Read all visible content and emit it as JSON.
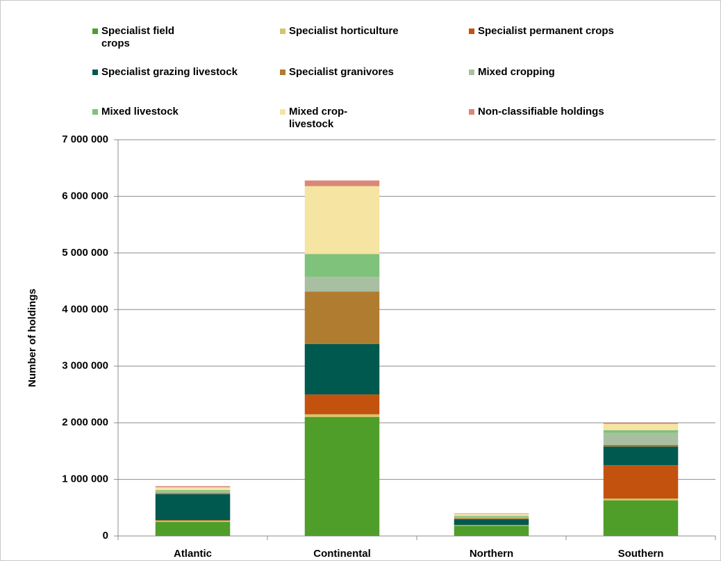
{
  "chart_data": {
    "type": "stacked_bar",
    "y_label": "Number of holdings",
    "categories": [
      "Atlantic",
      "Continental",
      "Northern",
      "Southern"
    ],
    "series": [
      {
        "name": "Specialist field crops",
        "color": "#4f9e2a",
        "values": [
          250000,
          2100000,
          180000,
          630000
        ]
      },
      {
        "name": "Specialist horticulture",
        "color": "#d4c46a",
        "values": [
          20000,
          50000,
          10000,
          30000
        ]
      },
      {
        "name": "Specialist permanent crops",
        "color": "#c4520f",
        "values": [
          10000,
          350000,
          5000,
          590000
        ]
      },
      {
        "name": "Specialist grazing livestock",
        "color": "#00594f",
        "values": [
          460000,
          890000,
          100000,
          330000
        ]
      },
      {
        "name": "Specialist granivores",
        "color": "#b07c30",
        "values": [
          20000,
          930000,
          20000,
          30000
        ]
      },
      {
        "name": "Mixed cropping",
        "color": "#a9bfa2",
        "values": [
          30000,
          260000,
          20000,
          210000
        ]
      },
      {
        "name": "Mixed livestock",
        "color": "#7fc27c",
        "values": [
          20000,
          400000,
          20000,
          50000
        ]
      },
      {
        "name": "Mixed crop-livestock",
        "color": "#f6e4a2",
        "values": [
          50000,
          1200000,
          35000,
          110000
        ]
      },
      {
        "name": "Non-classifiable holdings",
        "color": "#d98878",
        "values": [
          20000,
          100000,
          10000,
          20000
        ]
      }
    ],
    "ylim": [
      0,
      7000000
    ],
    "yticks": [
      0,
      {
        "value": 1000000,
        "label": "1 000 000"
      },
      {
        "value": 2000000,
        "label": "2 000 000"
      },
      {
        "value": 3000000,
        "label": "3 000 000"
      },
      {
        "value": 4000000,
        "label": "4 000 000"
      },
      {
        "value": 5000000,
        "label": "5 000 000"
      },
      {
        "value": 6000000,
        "label": "6 000 000"
      },
      {
        "value": 7000000,
        "label": "7 000 000"
      }
    ],
    "grid": true
  }
}
